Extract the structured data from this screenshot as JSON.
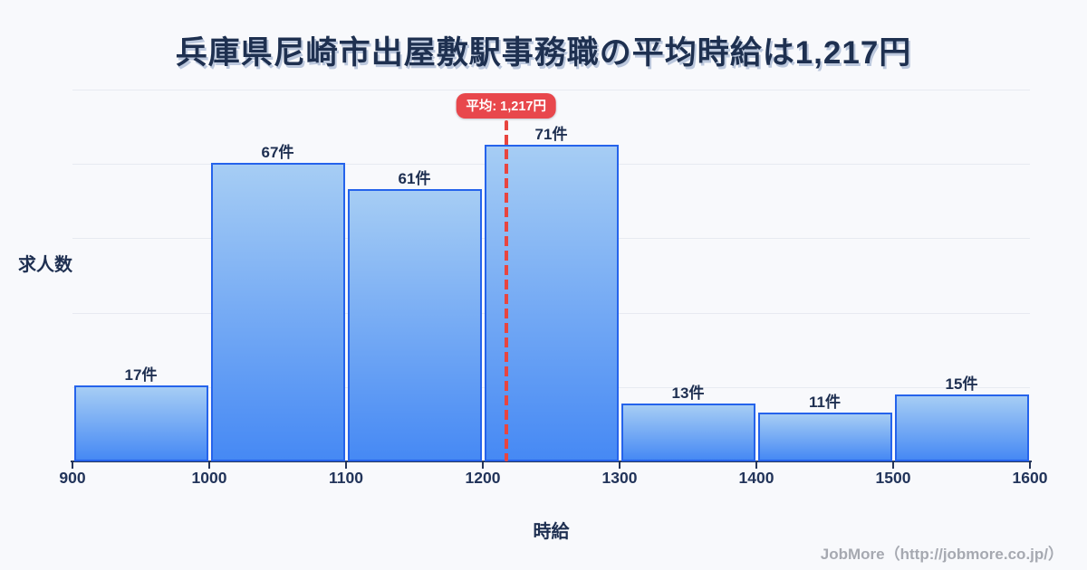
{
  "page": {
    "background": "#f8f9fc",
    "title": "兵庫県尼崎市出屋敷駅事務職の平均時給は1,217円",
    "footer": "JobMore（http://jobmore.co.jp/）"
  },
  "chart_data": {
    "type": "bar",
    "subtype": "histogram",
    "title": "兵庫県尼崎市出屋敷駅事務職の平均時給は1,217円",
    "xlabel": "時給",
    "ylabel": "求人数",
    "bin_edges": [
      900,
      1000,
      1100,
      1200,
      1300,
      1400,
      1500,
      1600
    ],
    "x_tick_labels": [
      "900",
      "1000",
      "1100",
      "1200",
      "1300",
      "1400",
      "1500",
      "1600"
    ],
    "values": [
      17,
      67,
      61,
      71,
      13,
      11,
      15
    ],
    "value_labels": [
      "17件",
      "67件",
      "61件",
      "71件",
      "13件",
      "11件",
      "15件"
    ],
    "value_unit": "件",
    "average": 1217,
    "average_label": "平均: 1,217円",
    "xlim": [
      900,
      1600
    ],
    "ylim": [
      0,
      83.4
    ],
    "grid": "horizontal",
    "legend": "none",
    "colors": {
      "bar_fill_top": "#a6cdf4",
      "bar_fill_bottom": "#4689f4",
      "bar_border": "#2563eb",
      "average_line": "#e8453f",
      "badge_background": "#e8474c",
      "badge_text": "#ffffff",
      "title_text": "#1e3050",
      "axis_text": "#22345a",
      "gridline": "#e7eaf1",
      "background": "#f8f9fc",
      "footer_text": "#a6a9b1"
    }
  }
}
